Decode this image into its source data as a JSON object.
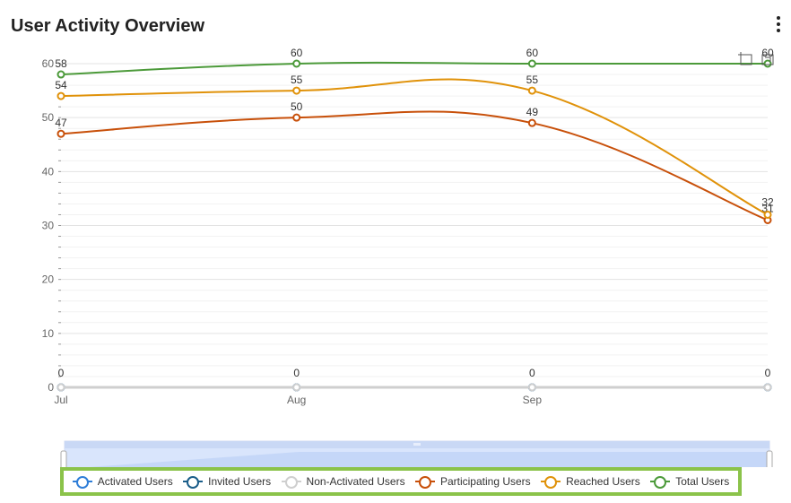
{
  "header": {
    "title": "User Activity Overview",
    "menu_icon": "more-vertical-icon"
  },
  "toolbox": {
    "icons": [
      "crop-zoom-icon",
      "zoom-reset-icon"
    ]
  },
  "chart_data": {
    "type": "line",
    "categories": [
      "Jul",
      "Aug",
      "Sep",
      ""
    ],
    "ylim": [
      0,
      60
    ],
    "yticks": [
      0,
      10,
      20,
      30,
      40,
      50,
      60
    ],
    "grid": true,
    "smooth": true,
    "legend_position": "bottom",
    "series": [
      {
        "name": "Activated Users",
        "color": "#2f7ed8",
        "values": [
          0,
          0,
          0,
          0
        ],
        "labels": false
      },
      {
        "name": "Invited Users",
        "color": "#1b5e8a",
        "values": [
          0,
          0,
          0,
          0
        ],
        "labels": false
      },
      {
        "name": "Non-Activated Users",
        "color": "#cfcfcf",
        "values": [
          0,
          0,
          0,
          0
        ],
        "labels": true
      },
      {
        "name": "Participating Users",
        "color": "#c8500a",
        "values": [
          47,
          50,
          49,
          31
        ],
        "labels": true
      },
      {
        "name": "Reached Users",
        "color": "#e0920a",
        "values": [
          54,
          55,
          55,
          32
        ],
        "labels": true
      },
      {
        "name": "Total Users",
        "color": "#4c9a3a",
        "values": [
          58,
          60,
          60,
          60
        ],
        "labels": true
      }
    ]
  }
}
